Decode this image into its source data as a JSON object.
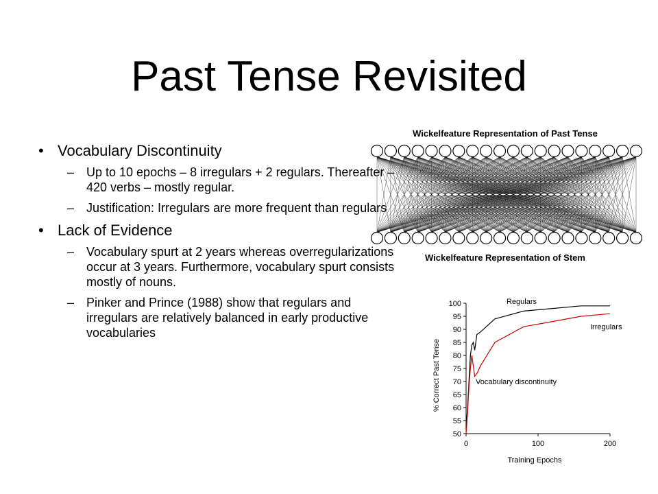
{
  "slide": {
    "title": "Past Tense Revisited",
    "bullets": [
      {
        "text": "Vocabulary Discontinuity",
        "subs": [
          "Up to 10 epochs – 8 irregulars + 2 regulars. Thereafter – 420 verbs – mostly regular.",
          "Justification: Irregulars are more frequent than regulars"
        ]
      },
      {
        "text": "Lack of Evidence",
        "subs": [
          "Vocabulary spurt at 2 years whereas overregularizations occur at 3 years. Furthermore, vocabulary spurt consists mostly of nouns.",
          "Pinker and Prince (1988) show that regulars and irregulars are relatively balanced in early productive vocabularies"
        ]
      }
    ]
  },
  "diagram": {
    "top_label": "Wickelfeature Representation of Past Tense",
    "bottom_label": "Wickelfeature Representation of Stem",
    "nodes_per_layer": 20
  },
  "chart_data": {
    "type": "line",
    "title": "",
    "xlabel": "Training Epochs",
    "ylabel": "% Correct Past Tense",
    "xlim": [
      0,
      200
    ],
    "ylim": [
      50,
      100
    ],
    "xticks": [
      0,
      100,
      200
    ],
    "yticks": [
      50,
      55,
      60,
      65,
      70,
      75,
      80,
      85,
      90,
      95,
      100
    ],
    "series": [
      {
        "name": "Regulars",
        "color": "#000000",
        "x": [
          0,
          2,
          4,
          6,
          8,
          10,
          12,
          15,
          20,
          40,
          80,
          120,
          160,
          200
        ],
        "y": [
          52,
          60,
          70,
          80,
          84,
          85,
          82,
          88,
          89,
          94,
          97,
          98,
          99,
          99
        ]
      },
      {
        "name": "Irregulars",
        "color": "#cc0000",
        "x": [
          0,
          2,
          4,
          6,
          8,
          10,
          12,
          15,
          20,
          40,
          80,
          120,
          160,
          200
        ],
        "y": [
          50,
          58,
          68,
          75,
          80,
          76,
          72,
          73,
          76,
          85,
          91,
          93,
          95,
          96
        ]
      }
    ],
    "annotation": "Vocabulary discontinuity"
  }
}
